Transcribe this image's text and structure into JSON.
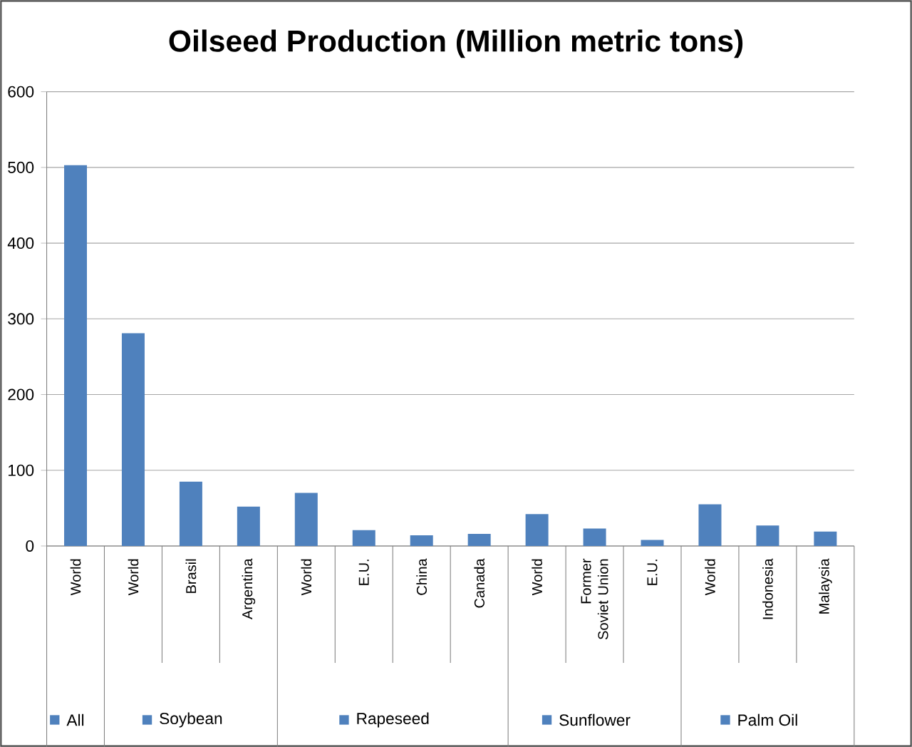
{
  "chart_data": {
    "type": "bar",
    "title": "Oilseed Production (Million metric tons)",
    "categories": [
      "World",
      "World",
      "Brasil",
      "Argentina",
      "World",
      "E.U.",
      "China",
      "Canada",
      "World",
      "Former Soviet Union",
      "E.U.",
      "World",
      "Indonesia",
      "Malaysia"
    ],
    "series": [
      {
        "name": "All",
        "color": "#4f81bd",
        "values": [
          503,
          null,
          null,
          null,
          null,
          null,
          null,
          null,
          null,
          null,
          null,
          null,
          null,
          null
        ]
      },
      {
        "name": "Soybean",
        "color": "#4f81bd",
        "values": [
          null,
          281,
          85,
          52,
          null,
          null,
          null,
          null,
          null,
          null,
          null,
          null,
          null,
          null
        ]
      },
      {
        "name": "Rapeseed",
        "color": "#4f81bd",
        "values": [
          null,
          null,
          null,
          null,
          70,
          21,
          14,
          16,
          null,
          null,
          null,
          null,
          null,
          null
        ]
      },
      {
        "name": "Sunflower",
        "color": "#4f81bd",
        "values": [
          null,
          null,
          null,
          null,
          null,
          null,
          null,
          null,
          42,
          23,
          8,
          null,
          null,
          null
        ]
      },
      {
        "name": "Palm Oil",
        "color": "#4f81bd",
        "values": [
          null,
          null,
          null,
          null,
          null,
          null,
          null,
          null,
          null,
          null,
          null,
          55,
          27,
          19
        ]
      }
    ],
    "ylim": [
      0,
      600
    ],
    "yticks": [
      0,
      100,
      200,
      300,
      400,
      500,
      600
    ],
    "grid": "y",
    "legend": "bottom"
  }
}
